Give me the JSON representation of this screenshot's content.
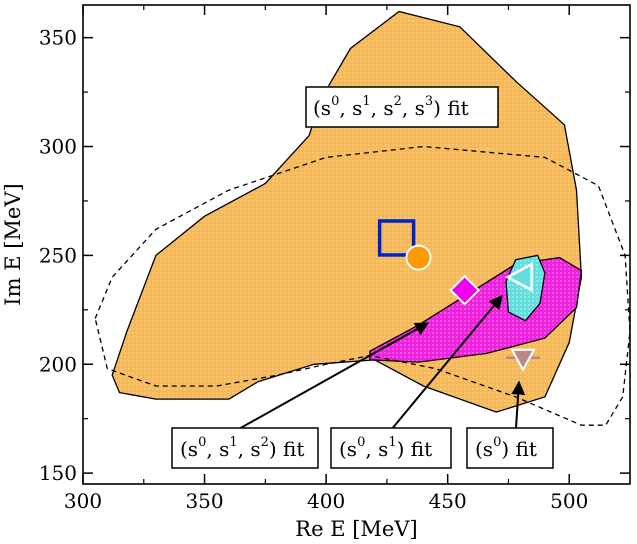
{
  "chart_data": {
    "type": "scatter",
    "xlabel": "Re E [MeV]",
    "ylabel": "Im E [MeV]",
    "xlim": [
      300,
      525
    ],
    "ylim": [
      145,
      365
    ],
    "x_ticks": [
      300,
      350,
      400,
      450,
      500
    ],
    "y_ticks": [
      150,
      200,
      250,
      300,
      350
    ],
    "regions": [
      {
        "name": "(s0, s1, s2, s3) fit",
        "style": "filled",
        "color": "#f5b95a",
        "points": [
          [
            312,
            195
          ],
          [
            318,
            215
          ],
          [
            330,
            250
          ],
          [
            350,
            268
          ],
          [
            375,
            283
          ],
          [
            393,
            305
          ],
          [
            398,
            322
          ],
          [
            410,
            345
          ],
          [
            430,
            362
          ],
          [
            455,
            355
          ],
          [
            478,
            330
          ],
          [
            498,
            310
          ],
          [
            503,
            280
          ],
          [
            505,
            240
          ],
          [
            500,
            210
          ],
          [
            490,
            185
          ],
          [
            470,
            178
          ],
          [
            440,
            190
          ],
          [
            420,
            202
          ],
          [
            395,
            200
          ],
          [
            372,
            192
          ],
          [
            360,
            184
          ],
          [
            330,
            184
          ],
          [
            315,
            187
          ]
        ]
      },
      {
        "name": "(s0, s1, s2) fit",
        "style": "filled",
        "color": "#ee22dd",
        "points": [
          [
            418,
            206
          ],
          [
            438,
            218
          ],
          [
            458,
            232
          ],
          [
            478,
            246
          ],
          [
            496,
            249
          ],
          [
            505,
            243
          ],
          [
            503,
            226
          ],
          [
            490,
            212
          ],
          [
            466,
            205
          ],
          [
            438,
            201
          ],
          [
            418,
            202
          ]
        ]
      },
      {
        "name": "(s0, s1) fit",
        "style": "filled",
        "color": "#66dddd",
        "points": [
          [
            474,
            238
          ],
          [
            478,
            248
          ],
          [
            487,
            250
          ],
          [
            490,
            242
          ],
          [
            488,
            228
          ],
          [
            482,
            220
          ],
          [
            475,
            224
          ]
        ]
      },
      {
        "name": "boundary",
        "style": "dashed",
        "color": "#000000",
        "points": [
          [
            305,
            221
          ],
          [
            312,
            240
          ],
          [
            330,
            262
          ],
          [
            360,
            280
          ],
          [
            400,
            295
          ],
          [
            440,
            300
          ],
          [
            490,
            295
          ],
          [
            512,
            282
          ],
          [
            523,
            250
          ],
          [
            525,
            215
          ],
          [
            522,
            185
          ],
          [
            515,
            172
          ],
          [
            505,
            172
          ],
          [
            478,
            185
          ],
          [
            445,
            198
          ],
          [
            418,
            204
          ],
          [
            400,
            200
          ],
          [
            380,
            195
          ],
          [
            355,
            190
          ],
          [
            330,
            190
          ],
          [
            310,
            198
          ]
        ]
      }
    ],
    "markers": [
      {
        "name": "square",
        "x": 429,
        "y": 258,
        "color": "#0022cc"
      },
      {
        "name": "circle",
        "x": 438,
        "y": 249,
        "color": "#ff9900"
      },
      {
        "name": "diamond",
        "x": 457,
        "y": 234,
        "color": "#ee00ee"
      },
      {
        "name": "triangle-left",
        "x": 480,
        "y": 240,
        "color": "#66dddd"
      },
      {
        "name": "triangle-down",
        "x": 481,
        "y": 203,
        "color": "#bb8888",
        "xerr": 7
      }
    ],
    "annotations": [
      {
        "name": "label-s0123",
        "text": [
          "(s",
          "0",
          ", s",
          "1",
          ", s",
          "2",
          ", s",
          "3",
          ") fit"
        ]
      },
      {
        "name": "label-s012",
        "text": [
          "(s",
          "0",
          ", s",
          "1",
          ", s",
          "2",
          ") fit"
        ]
      },
      {
        "name": "label-s01",
        "text": [
          "(s",
          "0",
          ", s",
          "1",
          ") fit"
        ]
      },
      {
        "name": "label-s0",
        "text": [
          "(s",
          "0",
          ") fit"
        ]
      }
    ]
  }
}
